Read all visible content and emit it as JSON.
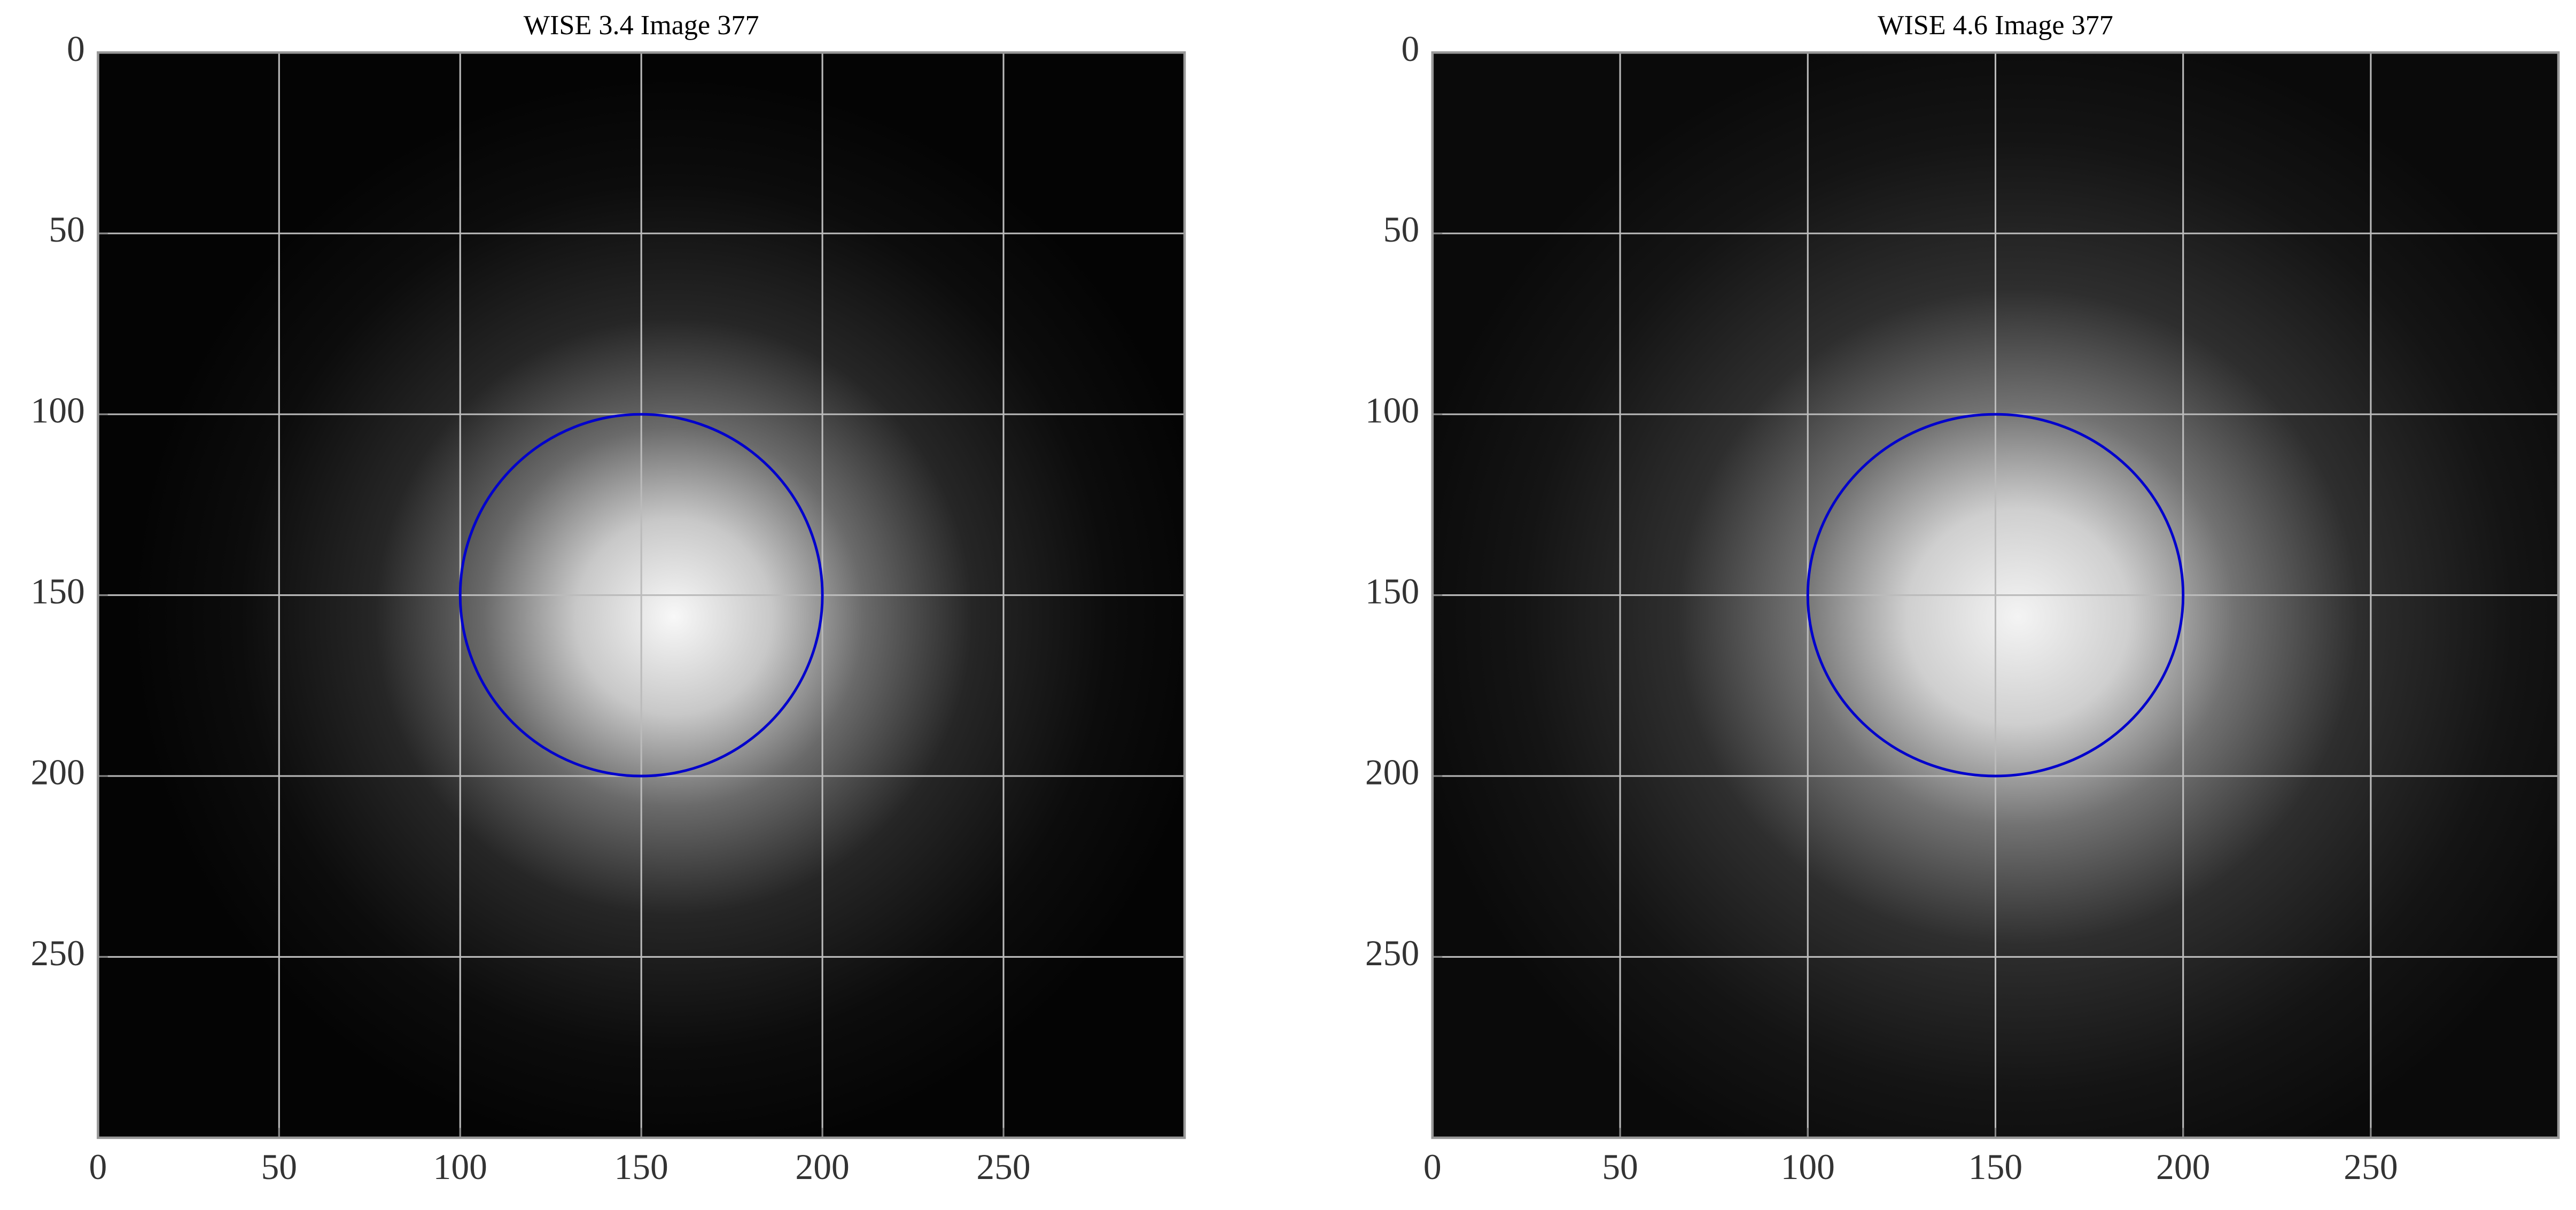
{
  "chart_data": [
    {
      "type": "image",
      "title": "WISE 3.4 Image 377",
      "xlim": [
        0,
        300
      ],
      "ylim": [
        300,
        0
      ],
      "xticks": [
        0,
        50,
        100,
        150,
        200,
        250
      ],
      "yticks": [
        0,
        50,
        100,
        150,
        200,
        250
      ],
      "grid": true,
      "circle": {
        "x": 150,
        "y": 150,
        "r": 50,
        "color": "#0000cc"
      }
    },
    {
      "type": "image",
      "title": "WISE 4.6 Image 377",
      "xlim": [
        0,
        300
      ],
      "ylim": [
        300,
        0
      ],
      "xticks": [
        0,
        50,
        100,
        150,
        200,
        250
      ],
      "yticks": [
        0,
        50,
        100,
        150,
        200,
        250
      ],
      "grid": true,
      "circle": {
        "x": 150,
        "y": 150,
        "r": 50,
        "color": "#0000cc"
      }
    }
  ]
}
